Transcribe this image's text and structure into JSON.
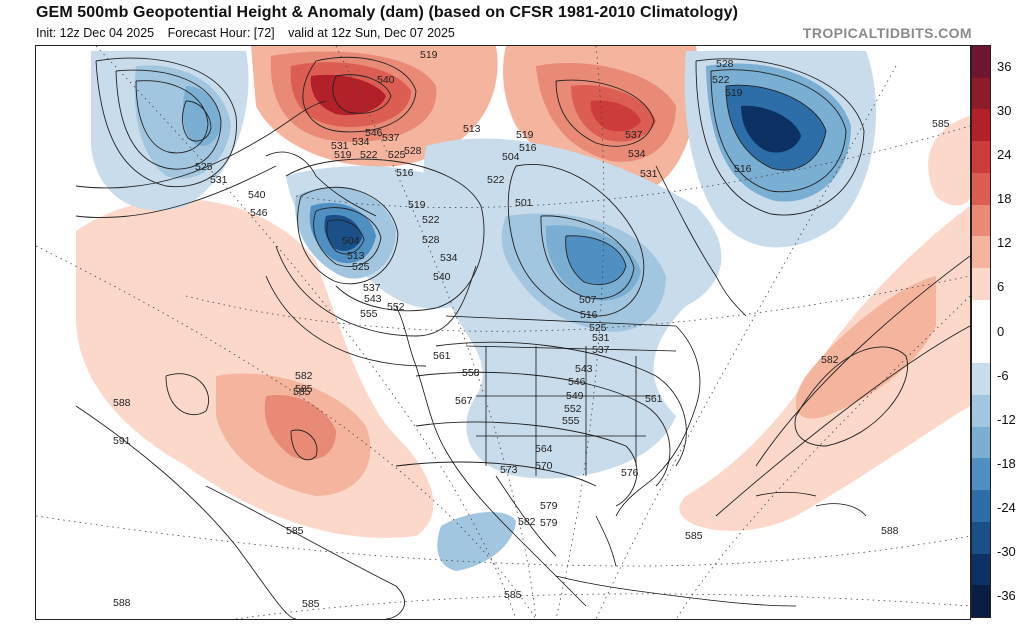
{
  "header": {
    "title": "GEM 500mb Geopotential Height & Anomaly (dam) (based on CFSR 1981-2010 Climatology)",
    "init": "Init: 12z Dec 04 2025",
    "forecast_hour": "Forecast Hour: [72]",
    "valid": "valid at 12z Sun, Dec 07 2025",
    "brand": "TROPICALTIDBITS.COM"
  },
  "colorbar": {
    "labels": [
      "36",
      "30",
      "24",
      "18",
      "12",
      "6",
      "0",
      "-6",
      "-12",
      "-18",
      "-24",
      "-30",
      "-36"
    ],
    "colors": [
      "#6e1630",
      "#8e1b2a",
      "#b2202a",
      "#cc3c3a",
      "#dc5e52",
      "#e98a76",
      "#f4b49e",
      "#fbd8c9",
      "#ffffff",
      "#ffffff",
      "#c9dcec",
      "#a3c6e0",
      "#7aaed3",
      "#4f8fc2",
      "#2e6ea8",
      "#1b4f88",
      "#0e3164",
      "#0a1d42"
    ]
  },
  "contour_labels": [
    {
      "text": "519"
    },
    {
      "text": "540"
    },
    {
      "text": "546"
    },
    {
      "text": "537"
    },
    {
      "text": "534"
    },
    {
      "text": "531"
    },
    {
      "text": "528"
    },
    {
      "text": "525"
    },
    {
      "text": "522"
    },
    {
      "text": "519"
    },
    {
      "text": "516"
    },
    {
      "text": "513"
    },
    {
      "text": "519"
    },
    {
      "text": "516"
    },
    {
      "text": "504"
    },
    {
      "text": "501"
    },
    {
      "text": "522"
    },
    {
      "text": "537"
    },
    {
      "text": "534"
    },
    {
      "text": "531"
    },
    {
      "text": "528"
    },
    {
      "text": "522"
    },
    {
      "text": "519"
    },
    {
      "text": "516"
    },
    {
      "text": "525"
    },
    {
      "text": "531"
    },
    {
      "text": "540"
    },
    {
      "text": "546"
    },
    {
      "text": "504"
    },
    {
      "text": "513"
    },
    {
      "text": "525"
    },
    {
      "text": "537"
    },
    {
      "text": "543"
    },
    {
      "text": "555"
    },
    {
      "text": "552"
    },
    {
      "text": "519"
    },
    {
      "text": "522"
    },
    {
      "text": "528"
    },
    {
      "text": "534"
    },
    {
      "text": "540"
    },
    {
      "text": "507"
    },
    {
      "text": "516"
    },
    {
      "text": "525"
    },
    {
      "text": "531"
    },
    {
      "text": "537"
    },
    {
      "text": "561"
    },
    {
      "text": "558"
    },
    {
      "text": "567"
    },
    {
      "text": "543"
    },
    {
      "text": "546"
    },
    {
      "text": "549"
    },
    {
      "text": "552"
    },
    {
      "text": "555"
    },
    {
      "text": "561"
    },
    {
      "text": "564"
    },
    {
      "text": "570"
    },
    {
      "text": "573"
    },
    {
      "text": "576"
    },
    {
      "text": "579"
    },
    {
      "text": "582"
    },
    {
      "text": "585"
    },
    {
      "text": "585"
    },
    {
      "text": "579"
    },
    {
      "text": "582"
    },
    {
      "text": "585"
    },
    {
      "text": "585"
    },
    {
      "text": "585"
    },
    {
      "text": "588"
    },
    {
      "text": "588"
    },
    {
      "text": "591"
    },
    {
      "text": "585"
    },
    {
      "text": "588"
    },
    {
      "text": "582"
    },
    {
      "text": "585"
    }
  ]
}
